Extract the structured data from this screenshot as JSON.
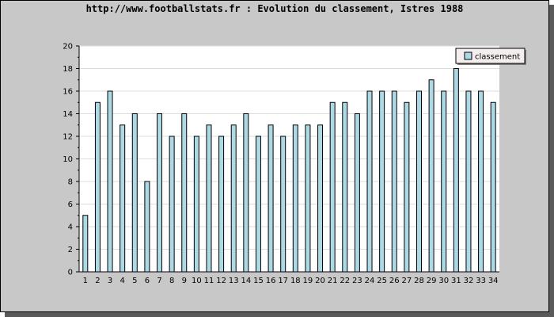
{
  "chart_data": {
    "type": "bar",
    "title": "http://www.footballstats.fr : Evolution du classement, Istres 1988",
    "xlabel": "",
    "ylabel": "",
    "categories": [
      "1",
      "2",
      "3",
      "4",
      "5",
      "6",
      "7",
      "8",
      "9",
      "10",
      "11",
      "12",
      "13",
      "14",
      "15",
      "16",
      "17",
      "18",
      "19",
      "20",
      "21",
      "22",
      "23",
      "24",
      "25",
      "26",
      "27",
      "28",
      "29",
      "30",
      "31",
      "32",
      "33",
      "34"
    ],
    "series": [
      {
        "name": "classement",
        "values": [
          5,
          15,
          16,
          13,
          14,
          8,
          14,
          12,
          14,
          12,
          13,
          12,
          13,
          14,
          12,
          13,
          12,
          13,
          13,
          13,
          15,
          15,
          14,
          16,
          16,
          16,
          15,
          16,
          17,
          16,
          18,
          16,
          16,
          15
        ]
      }
    ],
    "ylim": [
      0,
      20
    ],
    "yticks": [
      0,
      2,
      4,
      6,
      8,
      10,
      12,
      14,
      16,
      18,
      20
    ],
    "grid": true,
    "legend_position": "top-right",
    "colors": {
      "bar_fill": "#add8e6",
      "bar_stroke": "#000000",
      "plot_background": "#ffffff",
      "frame_background": "#c8c8c8",
      "grid": "#dddddd"
    }
  }
}
